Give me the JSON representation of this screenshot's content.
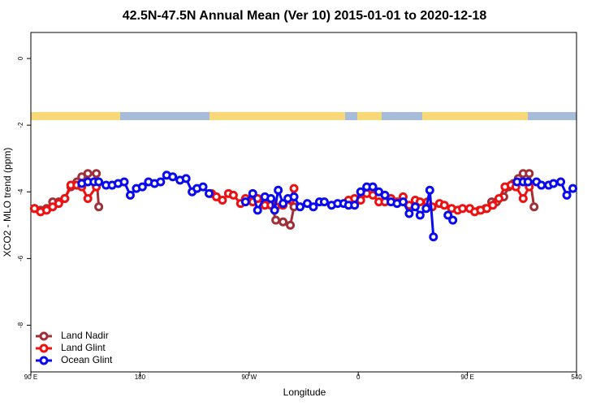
{
  "chart_data": {
    "type": "line",
    "title": "42.5N-47.5N Annual Mean (Ver 10)   2015-01-01 to 2020-12-18",
    "x_label": "Longitude",
    "y_label": "XCO2 - MLO trend (ppm)",
    "xlim": [
      90,
      540
    ],
    "xticks": [
      {
        "value": 90,
        "label": "90 E"
      },
      180,
      {
        "value": 270,
        "label": "90 W"
      },
      {
        "value": 360,
        "label": "0"
      },
      {
        "value": 450,
        "label": "90 E"
      },
      540
    ],
    "ylim": [
      -9.4,
      0.78
    ],
    "yticks": [
      0,
      -2,
      -4,
      -6,
      -8
    ],
    "legend": "bottom-left",
    "series": [
      {
        "name": "Land Nadir",
        "color": "#a03038",
        "x": [
          93,
          98,
          103,
          108,
          113,
          118,
          123,
          128,
          132,
          137,
          144,
          146,
          null,
          288,
          292,
          298,
          304,
          307,
          null,
          460,
          465,
          470,
          474,
          480,
          484,
          488,
          492,
          496,
          501,
          505
        ],
        "values": [
          -4.5,
          -4.55,
          -4.5,
          -4.3,
          -4.3,
          -4.2,
          -3.85,
          -3.7,
          -3.55,
          -3.45,
          -3.45,
          -4.45,
          null,
          -4.3,
          -4.85,
          -4.9,
          -5.0,
          -4.45,
          null,
          -4.55,
          -4.5,
          -4.3,
          -4.3,
          -4.15,
          -3.85,
          -3.75,
          -3.6,
          -3.45,
          -3.45,
          -4.45
        ]
      },
      {
        "name": "Land Glint",
        "color": "#ee1111",
        "x": [
          93,
          98,
          103,
          108,
          113,
          118,
          123,
          128,
          132,
          137,
          144,
          null,
          239,
          243,
          248,
          253,
          257,
          263,
          267,
          273,
          277,
          283,
          288,
          292,
          298,
          304,
          307,
          null,
          352,
          357,
          362,
          367,
          372,
          377,
          382,
          387,
          392,
          397,
          402,
          407,
          411,
          417,
          421,
          427,
          431,
          437,
          442,
          446,
          452,
          456,
          461,
          466,
          471,
          476,
          481,
          486,
          490,
          496,
          501
        ],
        "values": [
          -4.5,
          -4.6,
          -4.55,
          -4.45,
          -4.35,
          -4.2,
          -3.8,
          -3.8,
          -3.85,
          -4.2,
          -3.85,
          null,
          -4.05,
          -4.15,
          -4.25,
          -4.05,
          -4.1,
          -4.35,
          -4.2,
          -4.3,
          -4.2,
          -4.4,
          -4.4,
          -4.45,
          -4.4,
          -4.25,
          -3.9,
          null,
          -4.25,
          -4.2,
          -4.25,
          -4.05,
          -4.1,
          -4.3,
          -4.3,
          -4.2,
          -4.3,
          -4.15,
          -4.4,
          -4.25,
          -4.3,
          -4.3,
          -4.45,
          -4.35,
          -4.4,
          -4.5,
          -4.55,
          -4.5,
          -4.5,
          -4.6,
          -4.55,
          -4.5,
          -4.4,
          -4.2,
          -3.85,
          -3.8,
          -3.85,
          -4.2,
          -3.85
        ]
      },
      {
        "name": "Ocean Glint",
        "color": "#0a0af0",
        "x": [
          132,
          137,
          142,
          146,
          152,
          157,
          162,
          167,
          172,
          177,
          182,
          187,
          192,
          197,
          202,
          207,
          213,
          218,
          223,
          227,
          232,
          237,
          null,
          267,
          273,
          277,
          283,
          288,
          291,
          294,
          298,
          302,
          307,
          312,
          318,
          323,
          328,
          332,
          338,
          343,
          348,
          352,
          357,
          362,
          367,
          372,
          377,
          382,
          387,
          392,
          397,
          402,
          407,
          411,
          416,
          419,
          422,
          null,
          434,
          438,
          null,
          491,
          496,
          500,
          507,
          511,
          517,
          521,
          527,
          532,
          537
        ],
        "values": [
          -3.75,
          -3.7,
          -3.7,
          -3.7,
          -3.8,
          -3.8,
          -3.75,
          -3.7,
          -4.1,
          -3.9,
          -3.85,
          -3.7,
          -3.75,
          -3.7,
          -3.5,
          -3.55,
          -3.65,
          -3.6,
          -4.0,
          -3.9,
          -3.85,
          -4.05,
          null,
          -4.3,
          -4.05,
          -4.55,
          -4.15,
          -4.2,
          -4.55,
          -3.95,
          -4.35,
          -4.2,
          -4.15,
          -4.45,
          -4.35,
          -4.45,
          -4.3,
          -4.3,
          -4.4,
          -4.35,
          -4.35,
          -4.4,
          -4.4,
          -4.0,
          -3.85,
          -3.85,
          -4.0,
          -4.1,
          -4.3,
          -4.35,
          -4.3,
          -4.65,
          -4.45,
          -4.7,
          -4.5,
          -3.95,
          -5.35,
          null,
          -4.7,
          -4.85,
          null,
          -3.7,
          -3.7,
          -3.7,
          -3.7,
          -3.8,
          -3.8,
          -3.75,
          -3.7,
          -4.1,
          -3.9
        ]
      }
    ]
  }
}
